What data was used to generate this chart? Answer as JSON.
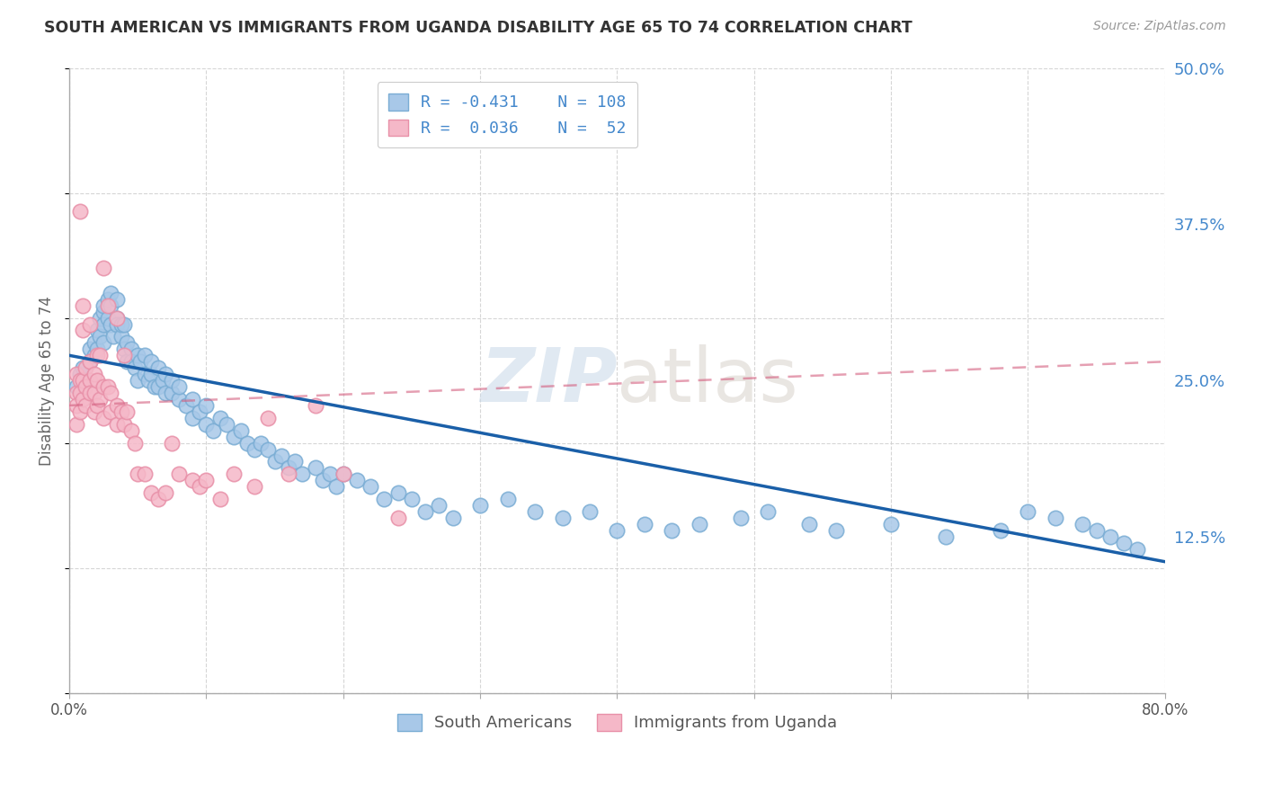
{
  "title": "SOUTH AMERICAN VS IMMIGRANTS FROM UGANDA DISABILITY AGE 65 TO 74 CORRELATION CHART",
  "source": "Source: ZipAtlas.com",
  "ylabel": "Disability Age 65 to 74",
  "xlim": [
    0.0,
    0.8
  ],
  "ylim": [
    0.0,
    0.5
  ],
  "xticks": [
    0.0,
    0.1,
    0.2,
    0.3,
    0.4,
    0.5,
    0.6,
    0.7,
    0.8
  ],
  "xticklabels": [
    "0.0%",
    "",
    "",
    "",
    "",
    "",
    "",
    "",
    "80.0%"
  ],
  "yticks_right": [
    0.125,
    0.25,
    0.375,
    0.5
  ],
  "ytick_right_labels": [
    "12.5%",
    "25.0%",
    "37.5%",
    "50.0%"
  ],
  "R_blue": -0.431,
  "N_blue": 108,
  "R_pink": 0.036,
  "N_pink": 52,
  "blue_color": "#a8c8e8",
  "blue_edge_color": "#7aadd4",
  "pink_color": "#f5b8c8",
  "pink_edge_color": "#e890a8",
  "blue_line_color": "#1a5fa8",
  "pink_line_color": "#d46080",
  "watermark_zip": "ZIP",
  "watermark_atlas": "atlas",
  "legend_label_blue": "South Americans",
  "legend_label_pink": "Immigrants from Uganda",
  "blue_scatter_x": [
    0.005,
    0.008,
    0.01,
    0.012,
    0.015,
    0.015,
    0.018,
    0.018,
    0.02,
    0.02,
    0.022,
    0.022,
    0.025,
    0.025,
    0.025,
    0.025,
    0.028,
    0.028,
    0.03,
    0.03,
    0.03,
    0.032,
    0.035,
    0.035,
    0.035,
    0.038,
    0.038,
    0.04,
    0.04,
    0.042,
    0.042,
    0.045,
    0.045,
    0.048,
    0.05,
    0.05,
    0.052,
    0.055,
    0.055,
    0.058,
    0.06,
    0.06,
    0.062,
    0.065,
    0.065,
    0.068,
    0.07,
    0.07,
    0.075,
    0.075,
    0.08,
    0.08,
    0.085,
    0.09,
    0.09,
    0.095,
    0.1,
    0.1,
    0.105,
    0.11,
    0.115,
    0.12,
    0.125,
    0.13,
    0.135,
    0.14,
    0.145,
    0.15,
    0.155,
    0.16,
    0.165,
    0.17,
    0.18,
    0.185,
    0.19,
    0.195,
    0.2,
    0.21,
    0.22,
    0.23,
    0.24,
    0.25,
    0.26,
    0.27,
    0.28,
    0.3,
    0.32,
    0.34,
    0.36,
    0.38,
    0.4,
    0.42,
    0.44,
    0.46,
    0.49,
    0.51,
    0.54,
    0.56,
    0.6,
    0.64,
    0.68,
    0.7,
    0.72,
    0.74,
    0.75,
    0.76,
    0.77,
    0.78
  ],
  "blue_scatter_y": [
    0.245,
    0.255,
    0.26,
    0.25,
    0.265,
    0.275,
    0.28,
    0.27,
    0.29,
    0.275,
    0.3,
    0.285,
    0.305,
    0.31,
    0.295,
    0.28,
    0.315,
    0.3,
    0.32,
    0.31,
    0.295,
    0.285,
    0.3,
    0.315,
    0.295,
    0.285,
    0.295,
    0.275,
    0.295,
    0.28,
    0.265,
    0.275,
    0.265,
    0.26,
    0.27,
    0.25,
    0.265,
    0.255,
    0.27,
    0.25,
    0.255,
    0.265,
    0.245,
    0.26,
    0.245,
    0.25,
    0.24,
    0.255,
    0.24,
    0.25,
    0.235,
    0.245,
    0.23,
    0.235,
    0.22,
    0.225,
    0.215,
    0.23,
    0.21,
    0.22,
    0.215,
    0.205,
    0.21,
    0.2,
    0.195,
    0.2,
    0.195,
    0.185,
    0.19,
    0.18,
    0.185,
    0.175,
    0.18,
    0.17,
    0.175,
    0.165,
    0.175,
    0.17,
    0.165,
    0.155,
    0.16,
    0.155,
    0.145,
    0.15,
    0.14,
    0.15,
    0.155,
    0.145,
    0.14,
    0.145,
    0.13,
    0.135,
    0.13,
    0.135,
    0.14,
    0.145,
    0.135,
    0.13,
    0.135,
    0.125,
    0.13,
    0.145,
    0.14,
    0.135,
    0.13,
    0.125,
    0.12,
    0.115
  ],
  "pink_scatter_x": [
    0.005,
    0.005,
    0.005,
    0.005,
    0.008,
    0.008,
    0.008,
    0.01,
    0.01,
    0.012,
    0.012,
    0.012,
    0.015,
    0.015,
    0.015,
    0.018,
    0.018,
    0.018,
    0.02,
    0.02,
    0.02,
    0.022,
    0.025,
    0.025,
    0.028,
    0.03,
    0.03,
    0.035,
    0.035,
    0.038,
    0.04,
    0.042,
    0.045,
    0.048,
    0.05,
    0.055,
    0.06,
    0.065,
    0.07,
    0.075,
    0.08,
    0.09,
    0.095,
    0.1,
    0.11,
    0.12,
    0.135,
    0.145,
    0.16,
    0.18,
    0.2,
    0.24
  ],
  "pink_scatter_y": [
    0.255,
    0.24,
    0.23,
    0.215,
    0.25,
    0.24,
    0.225,
    0.25,
    0.235,
    0.26,
    0.245,
    0.23,
    0.265,
    0.25,
    0.24,
    0.255,
    0.24,
    0.225,
    0.27,
    0.25,
    0.23,
    0.235,
    0.245,
    0.22,
    0.245,
    0.24,
    0.225,
    0.23,
    0.215,
    0.225,
    0.215,
    0.225,
    0.21,
    0.2,
    0.175,
    0.175,
    0.16,
    0.155,
    0.16,
    0.2,
    0.175,
    0.17,
    0.165,
    0.17,
    0.155,
    0.175,
    0.165,
    0.22,
    0.175,
    0.23,
    0.175,
    0.14
  ],
  "pink_extra_x": [
    0.008,
    0.01,
    0.01,
    0.015,
    0.022,
    0.025,
    0.028,
    0.035,
    0.04
  ],
  "pink_extra_y": [
    0.385,
    0.31,
    0.29,
    0.295,
    0.27,
    0.34,
    0.31,
    0.3,
    0.27
  ],
  "blue_line_x": [
    0.0,
    0.8
  ],
  "blue_line_y": [
    0.27,
    0.105
  ],
  "pink_line_x": [
    0.0,
    0.8
  ],
  "pink_line_y": [
    0.23,
    0.265
  ]
}
